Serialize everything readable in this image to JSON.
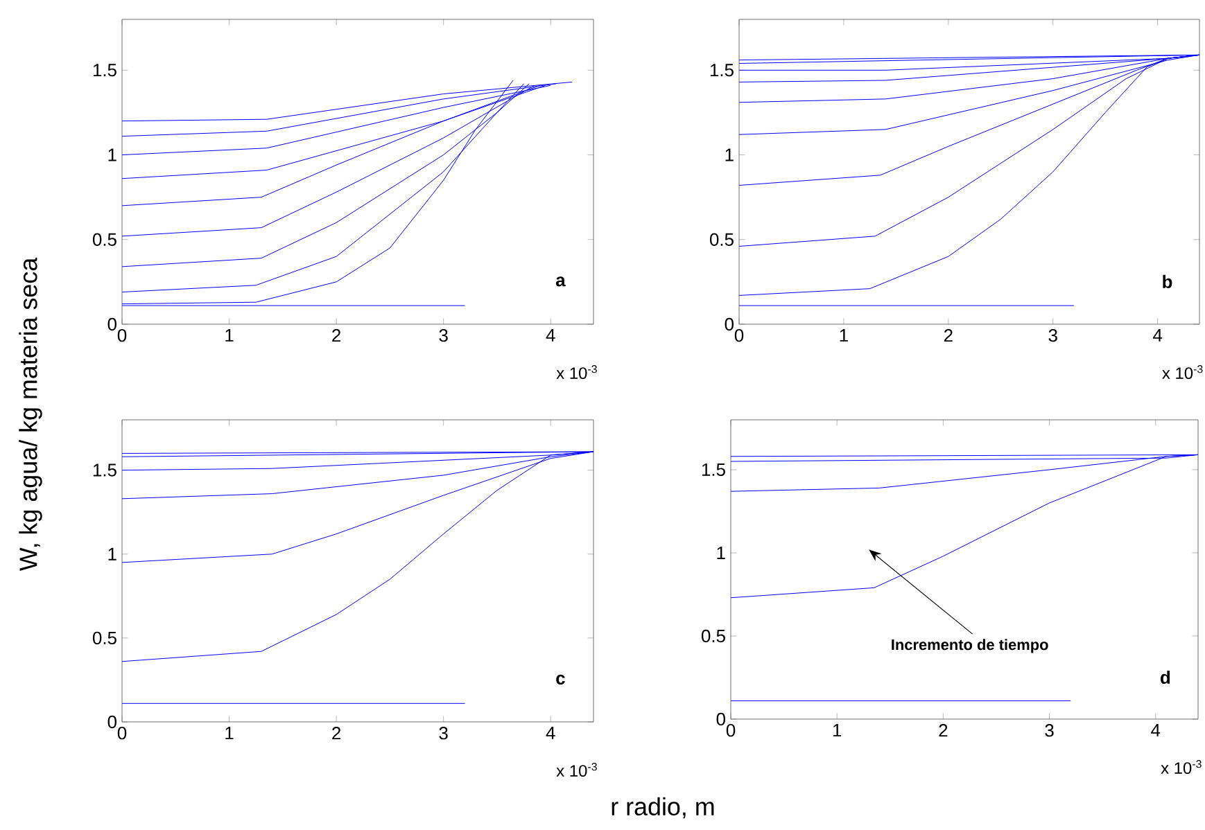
{
  "chart_data": [
    {
      "type": "line",
      "ylabel": "W, kg agua/ kg materia seca",
      "xlim": [
        0,
        4.4
      ],
      "ylim": [
        0,
        1.8
      ],
      "xticks": [
        0,
        1,
        2,
        3,
        4
      ],
      "yticks": [
        0,
        0.5,
        1,
        1.5
      ],
      "annotations": [
        "a",
        "x 10$^{-3}$"
      ],
      "series": [
        {
          "color": "#0000ff",
          "x": [
            0,
            3.2
          ],
          "values": [
            0.11,
            0.11
          ]
        },
        {
          "color": "#0000ff",
          "x": [
            0,
            1.25,
            2,
            2.5,
            3,
            3.3,
            3.65
          ],
          "values": [
            0.12,
            0.13,
            0.25,
            0.45,
            0.85,
            1.15,
            1.44
          ]
        },
        {
          "color": "#0000ff",
          "x": [
            0,
            1.25,
            2,
            3,
            3.5,
            3.75
          ],
          "values": [
            0.19,
            0.23,
            0.4,
            0.9,
            1.25,
            1.42
          ]
        },
        {
          "color": "#0000ff",
          "x": [
            0,
            1.3,
            2,
            3,
            3.5,
            3.8
          ],
          "values": [
            0.34,
            0.39,
            0.6,
            1.0,
            1.25,
            1.42
          ]
        },
        {
          "color": "#0000ff",
          "x": [
            0,
            1.3,
            2,
            3,
            3.85
          ],
          "values": [
            0.52,
            0.57,
            0.78,
            1.1,
            1.41
          ]
        },
        {
          "color": "#0000ff",
          "x": [
            0,
            1.3,
            2,
            3,
            3.9
          ],
          "values": [
            0.7,
            0.75,
            0.94,
            1.2,
            1.41
          ]
        },
        {
          "color": "#0000ff",
          "x": [
            0,
            1.35,
            3,
            3.95
          ],
          "values": [
            0.86,
            0.91,
            1.2,
            1.41
          ]
        },
        {
          "color": "#0000ff",
          "x": [
            0,
            1.35,
            3,
            4.0
          ],
          "values": [
            1.0,
            1.04,
            1.28,
            1.41
          ]
        },
        {
          "color": "#0000ff",
          "x": [
            0,
            1.35,
            3,
            4.05
          ],
          "values": [
            1.11,
            1.14,
            1.33,
            1.42
          ]
        },
        {
          "color": "#0000ff",
          "x": [
            0,
            1.35,
            3,
            4.2
          ],
          "values": [
            1.2,
            1.21,
            1.36,
            1.43
          ]
        }
      ]
    },
    {
      "type": "line",
      "xlim": [
        0,
        4.4
      ],
      "ylim": [
        0,
        1.8
      ],
      "xticks": [
        0,
        1,
        2,
        3,
        4
      ],
      "yticks": [
        0,
        0.5,
        1,
        1.5
      ],
      "annotations": [
        "b",
        "x 10$^{-3}$"
      ],
      "series": [
        {
          "color": "#0000ff",
          "x": [
            0,
            3.2
          ],
          "values": [
            0.11,
            0.11
          ]
        },
        {
          "color": "#0000ff",
          "x": [
            0,
            1.25,
            2,
            2.5,
            3,
            3.5,
            3.9,
            4.1,
            4.4
          ],
          "values": [
            0.17,
            0.21,
            0.4,
            0.62,
            0.9,
            1.25,
            1.52,
            1.57,
            1.59
          ]
        },
        {
          "color": "#0000ff",
          "x": [
            0,
            1.3,
            2,
            3,
            3.7,
            4.1,
            4.4
          ],
          "values": [
            0.46,
            0.52,
            0.75,
            1.15,
            1.45,
            1.57,
            1.59
          ]
        },
        {
          "color": "#0000ff",
          "x": [
            0,
            1.35,
            2,
            3,
            3.8,
            4.1,
            4.4
          ],
          "values": [
            0.82,
            0.88,
            1.05,
            1.3,
            1.5,
            1.57,
            1.59
          ]
        },
        {
          "color": "#0000ff",
          "x": [
            0,
            1.4,
            3,
            4.1,
            4.4
          ],
          "values": [
            1.12,
            1.15,
            1.38,
            1.56,
            1.59
          ]
        },
        {
          "color": "#0000ff",
          "x": [
            0,
            1.4,
            3,
            4.1,
            4.4
          ],
          "values": [
            1.31,
            1.33,
            1.45,
            1.57,
            1.59
          ]
        },
        {
          "color": "#0000ff",
          "x": [
            0,
            1.4,
            4.1,
            4.4
          ],
          "values": [
            1.43,
            1.44,
            1.57,
            1.59
          ]
        },
        {
          "color": "#0000ff",
          "x": [
            0,
            1.4,
            4.1,
            4.4
          ],
          "values": [
            1.5,
            1.5,
            1.57,
            1.59
          ]
        },
        {
          "color": "#0000ff",
          "x": [
            0,
            4.4
          ],
          "values": [
            1.54,
            1.59
          ]
        },
        {
          "color": "#0000ff",
          "x": [
            0,
            4.4
          ],
          "values": [
            1.56,
            1.59
          ]
        }
      ]
    },
    {
      "type": "line",
      "xlabel": "r radio, m",
      "xlim": [
        0,
        4.4
      ],
      "ylim": [
        0,
        1.8
      ],
      "xticks": [
        0,
        1,
        2,
        3,
        4
      ],
      "yticks": [
        0,
        0.5,
        1,
        1.5
      ],
      "annotations": [
        "c",
        "x 10$^{-3}$"
      ],
      "series": [
        {
          "color": "#0000ff",
          "x": [
            0,
            3.2
          ],
          "values": [
            0.11,
            0.11
          ]
        },
        {
          "color": "#0000ff",
          "x": [
            0,
            1.3,
            2,
            2.5,
            3,
            3.5,
            4,
            4.4
          ],
          "values": [
            0.36,
            0.42,
            0.64,
            0.85,
            1.12,
            1.38,
            1.59,
            1.61
          ]
        },
        {
          "color": "#0000ff",
          "x": [
            0,
            1.4,
            2,
            3,
            4,
            4.4
          ],
          "values": [
            0.95,
            1.0,
            1.12,
            1.35,
            1.57,
            1.61
          ]
        },
        {
          "color": "#0000ff",
          "x": [
            0,
            1.4,
            3,
            4,
            4.4
          ],
          "values": [
            1.33,
            1.36,
            1.47,
            1.58,
            1.61
          ]
        },
        {
          "color": "#0000ff",
          "x": [
            0,
            1.4,
            4,
            4.4
          ],
          "values": [
            1.5,
            1.51,
            1.59,
            1.61
          ]
        },
        {
          "color": "#0000ff",
          "x": [
            0,
            4.4
          ],
          "values": [
            1.58,
            1.61
          ]
        },
        {
          "color": "#0000ff",
          "x": [
            0,
            4.4
          ],
          "values": [
            1.6,
            1.61
          ]
        }
      ]
    },
    {
      "type": "line",
      "xlim": [
        0,
        4.4
      ],
      "ylim": [
        0,
        1.8
      ],
      "xticks": [
        0,
        1,
        2,
        3,
        4
      ],
      "yticks": [
        0,
        0.5,
        1,
        1.5
      ],
      "annotations": [
        "d",
        "x 10$^{-3}$",
        "Incremento de tiempo"
      ],
      "series": [
        {
          "color": "#0000ff",
          "x": [
            0,
            3.2
          ],
          "values": [
            0.11,
            0.11
          ]
        },
        {
          "color": "#0000ff",
          "x": [
            0,
            1.35,
            2,
            3,
            4.1,
            4.4
          ],
          "values": [
            0.73,
            0.79,
            0.98,
            1.3,
            1.58,
            1.59
          ]
        },
        {
          "color": "#0000ff",
          "x": [
            0,
            1.4,
            3,
            4.1,
            4.4
          ],
          "values": [
            1.37,
            1.39,
            1.5,
            1.58,
            1.59
          ]
        },
        {
          "color": "#0000ff",
          "x": [
            0,
            4.1,
            4.4
          ],
          "values": [
            1.55,
            1.57,
            1.59
          ]
        },
        {
          "color": "#0000ff",
          "x": [
            0,
            4.4
          ],
          "values": [
            1.58,
            1.59
          ]
        }
      ]
    }
  ]
}
